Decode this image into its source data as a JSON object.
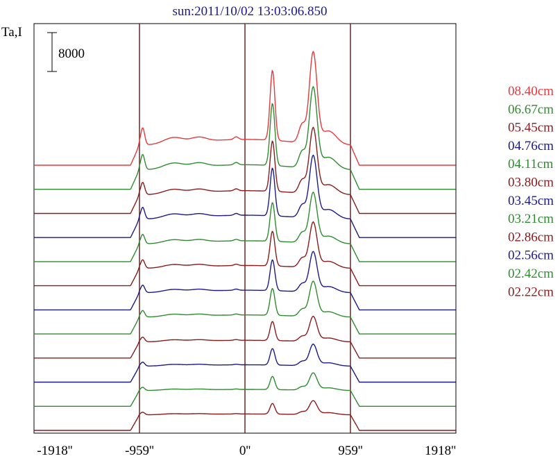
{
  "chart_data": {
    "type": "line",
    "title": "sun:2011/10/02 13:03:06.850",
    "ylabel": "Ta,I",
    "scale_bar_label": "8000",
    "x_ticks": [
      {
        "value": -1918,
        "label": "-1918''"
      },
      {
        "value": -959,
        "label": "-959''"
      },
      {
        "value": 0,
        "label": "0''"
      },
      {
        "value": 959,
        "label": "959''"
      },
      {
        "value": 1918,
        "label": "1918''"
      }
    ],
    "xlim": [
      -1918,
      1918
    ],
    "vertical_lines": [
      -959,
      0,
      959
    ],
    "grid": false,
    "legend_position": "right",
    "colors": {
      "red": "#e8383a",
      "green": "#2e8b2e",
      "darkred": "#8b1a1a",
      "blue": "#1a1a8b",
      "axis": "#000000",
      "vline": "#5a1a1a"
    },
    "series": [
      {
        "name": "08.40cm",
        "color": "#e8383a",
        "peak_scale": 1.0
      },
      {
        "name": "06.67cm",
        "color": "#2e8b2e",
        "peak_scale": 0.88
      },
      {
        "name": "05.45cm",
        "color": "#8b1a1a",
        "peak_scale": 0.7
      },
      {
        "name": "04.76cm",
        "color": "#1a1a8b",
        "peak_scale": 0.66
      },
      {
        "name": "04.11cm",
        "color": "#2e8b2e",
        "peak_scale": 0.52
      },
      {
        "name": "03.80cm",
        "color": "#8b1a1a",
        "peak_scale": 0.46
      },
      {
        "name": "03.45cm",
        "color": "#1a1a8b",
        "peak_scale": 0.4
      },
      {
        "name": "03.21cm",
        "color": "#2e8b2e",
        "peak_scale": 0.34
      },
      {
        "name": "02.86cm",
        "color": "#8b1a1a",
        "peak_scale": 0.22
      },
      {
        "name": "02.56cm",
        "color": "#1a1a8b",
        "peak_scale": 0.18
      },
      {
        "name": "02.42cm",
        "color": "#2e8b2e",
        "peak_scale": 0.13
      },
      {
        "name": "02.22cm",
        "color": "#8b1a1a",
        "peak_scale": 0.09
      }
    ]
  }
}
